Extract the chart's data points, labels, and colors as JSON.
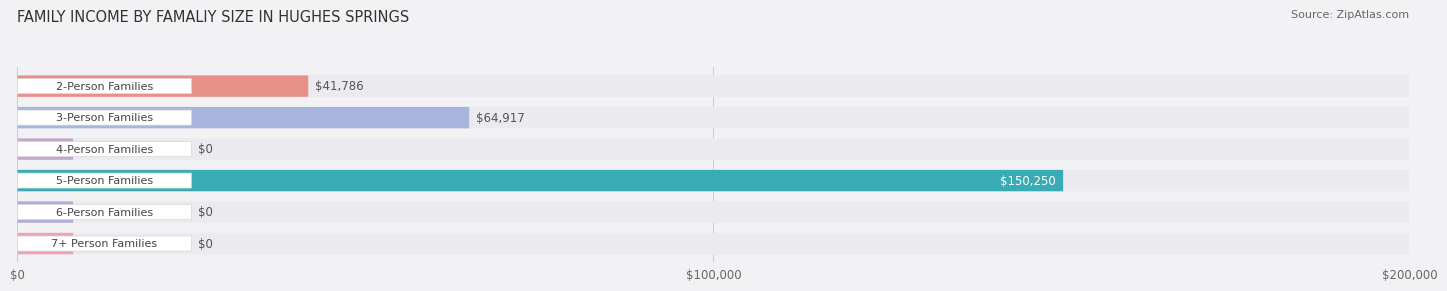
{
  "title": "FAMILY INCOME BY FAMALIY SIZE IN HUGHES SPRINGS",
  "source": "Source: ZipAtlas.com",
  "categories": [
    "2-Person Families",
    "3-Person Families",
    "4-Person Families",
    "5-Person Families",
    "6-Person Families",
    "7+ Person Families"
  ],
  "values": [
    41786,
    64917,
    0,
    150250,
    0,
    0
  ],
  "bar_colors": [
    "#E8908A",
    "#A8B5DC",
    "#C4A8CA",
    "#38ABB5",
    "#AEAED8",
    "#F0A0B5"
  ],
  "label_colors": [
    "#555555",
    "#555555",
    "#555555",
    "#ffffff",
    "#555555",
    "#555555"
  ],
  "zero_bar_colors": [
    "#C4A8CA",
    "#AEAED8",
    "#F0A0B5"
  ],
  "xlim": [
    0,
    200000
  ],
  "xticks": [
    0,
    100000,
    200000
  ],
  "xtick_labels": [
    "$0",
    "$100,000",
    "$200,000"
  ],
  "background_color": "#f2f2f5",
  "bar_bg_color": "#eaeaef",
  "title_fontsize": 10.5,
  "source_fontsize": 8,
  "bar_height": 0.68,
  "label_fontsize": 8.5,
  "category_fontsize": 8
}
